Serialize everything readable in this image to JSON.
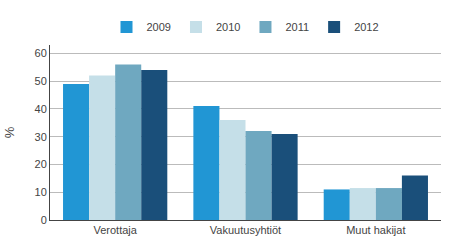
{
  "chart_data": {
    "type": "bar",
    "categories": [
      "Verottaja",
      "Vakuutusyhtiöt",
      "Muut hakijat"
    ],
    "series": [
      {
        "name": "2009",
        "color": "#2196d4",
        "values": [
          49,
          41,
          11
        ]
      },
      {
        "name": "2010",
        "color": "#c5dfe8",
        "values": [
          52,
          36,
          11.5
        ]
      },
      {
        "name": "2011",
        "color": "#6fa8c0",
        "values": [
          56,
          32,
          11.5
        ]
      },
      {
        "name": "2012",
        "color": "#1a4f7a",
        "values": [
          54,
          31,
          16
        ]
      }
    ],
    "ylabel": "%",
    "ylim": [
      0,
      63
    ],
    "yticks": [
      0,
      10,
      20,
      30,
      40,
      50,
      60
    ],
    "grid": true,
    "legend": "top"
  }
}
